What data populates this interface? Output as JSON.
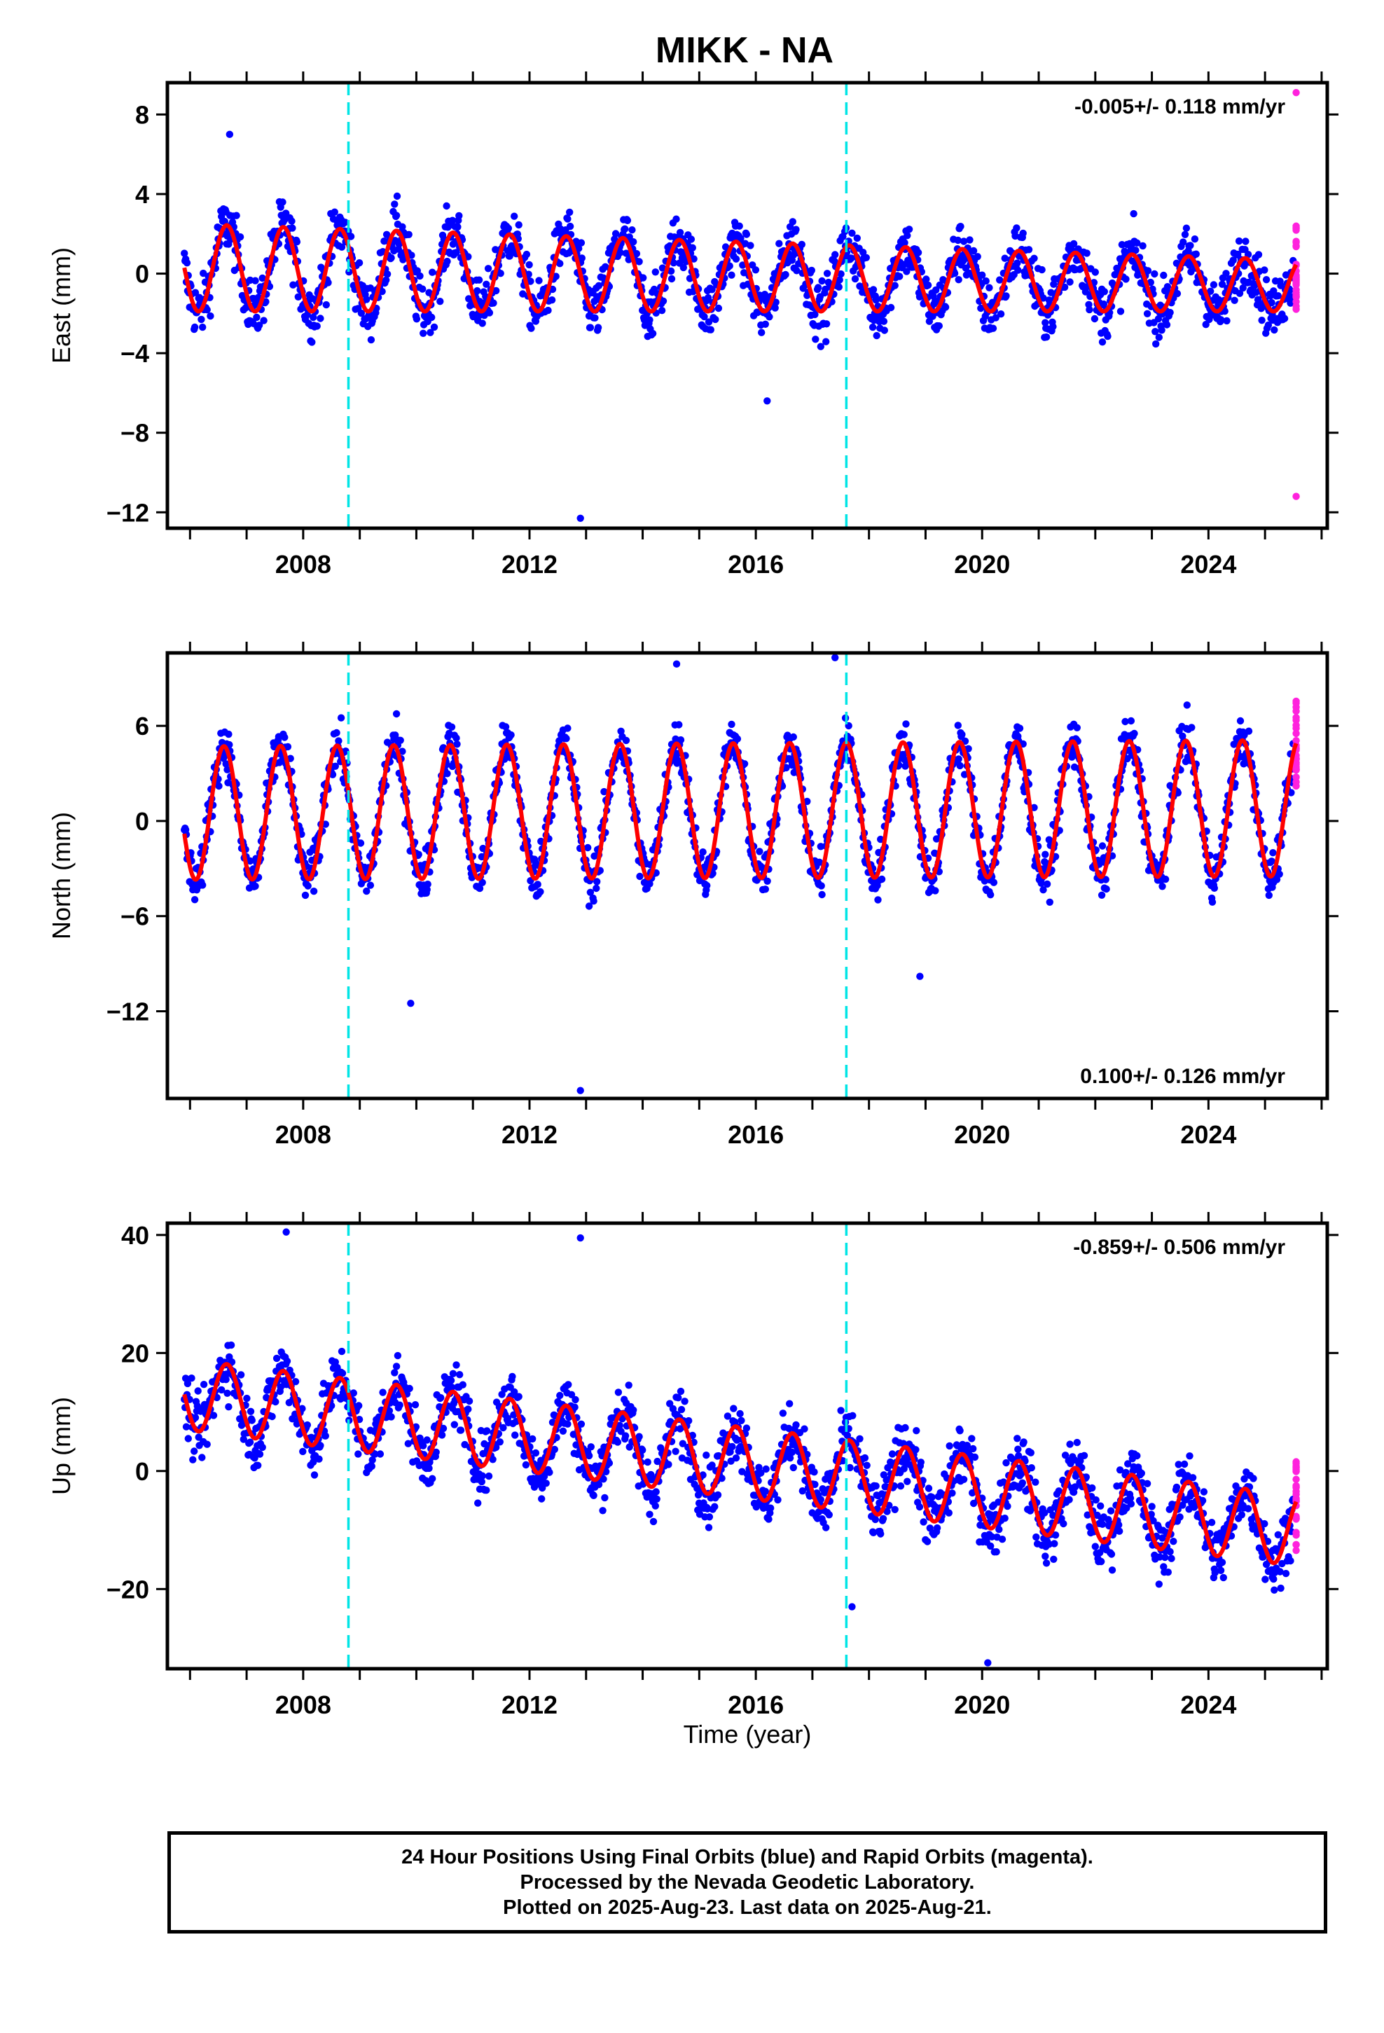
{
  "title": "MIKK - NA",
  "xlabel": "Time (year)",
  "x_ticks": [
    "2008",
    "2012",
    "2016",
    "2020",
    "2024"
  ],
  "colors": {
    "final": "#0000ff",
    "rapid": "#ff22dd",
    "model": "#ff0000",
    "offset": "#00e5e5"
  },
  "footer": [
    "24 Hour Positions Using Final Orbits (blue) and Rapid Orbits (magenta).",
    "Processed by the Nevada Geodetic Laboratory.",
    "Plotted on 2025-Aug-23. Last data on 2025-Aug-21."
  ],
  "chart_data": [
    {
      "type": "scatter",
      "name": "east",
      "ylabel": "East (mm)",
      "rate_text": "-0.005+/- 0.118 mm/yr",
      "rate_position": "top-right",
      "xlim": [
        2005.6,
        2026.1
      ],
      "ylim": [
        -12.8,
        9.6
      ],
      "y_ticks": [
        8,
        4,
        0,
        -4,
        -8,
        -12
      ],
      "y_ticks_labels": [
        "8",
        "4",
        "0",
        "−4",
        "−8",
        "−12"
      ],
      "offsets": [
        2008.8,
        2017.6
      ],
      "data_start": 2005.9,
      "data_end": 2025.5,
      "rapid_start": 2025.55,
      "model": {
        "trend_start": 0.3,
        "trend_end": -0.6,
        "amp_early": 2.2,
        "amp_late": 1.3,
        "phase_peak": 0.65,
        "noise": 1.2
      },
      "outliers": [
        [
          2012.9,
          -12.3
        ],
        [
          2016.2,
          -6.4
        ],
        [
          2025.6,
          -11.2
        ],
        [
          2025.6,
          9.1
        ],
        [
          2006.7,
          7.0
        ]
      ]
    },
    {
      "type": "scatter",
      "name": "north",
      "ylabel": "North (mm)",
      "rate_text": "0.100+/- 0.126 mm/yr",
      "rate_position": "bottom-right",
      "xlim": [
        2005.6,
        2026.1
      ],
      "ylim": [
        -17.5,
        10.6
      ],
      "y_ticks": [
        6,
        0,
        -6,
        -12
      ],
      "y_ticks_labels": [
        "6",
        "0",
        "−6",
        "−12"
      ],
      "offsets": [
        2008.8,
        2017.6
      ],
      "data_start": 2005.9,
      "data_end": 2025.5,
      "rapid_start": 2025.55,
      "model": {
        "trend_start": 0.5,
        "trend_end": 0.8,
        "amp_early": 4.2,
        "amp_late": 4.3,
        "phase_peak": 0.6,
        "noise": 1.3
      },
      "outliers": [
        [
          2012.9,
          -17.0
        ],
        [
          2009.9,
          -11.5
        ],
        [
          2018.9,
          -9.8
        ],
        [
          2017.4,
          10.3
        ],
        [
          2014.6,
          9.9
        ]
      ]
    },
    {
      "type": "scatter",
      "name": "up",
      "ylabel": "Up (mm)",
      "rate_text": "-0.859+/- 0.506 mm/yr",
      "rate_position": "top-right",
      "xlim": [
        2005.6,
        2026.1
      ],
      "ylim": [
        -33.5,
        42.0
      ],
      "y_ticks": [
        40,
        20,
        0,
        -20
      ],
      "y_ticks_labels": [
        "40",
        "20",
        "0",
        "−20"
      ],
      "offsets": [
        2008.8,
        2017.6
      ],
      "data_start": 2005.9,
      "data_end": 2025.5,
      "rapid_start": 2025.55,
      "model": {
        "trend_start": 13.0,
        "trend_end": -10.0,
        "amp_early": 6.0,
        "amp_late": 6.0,
        "phase_peak": 0.65,
        "noise": 4.5
      },
      "outliers": [
        [
          2007.7,
          40.5
        ],
        [
          2012.9,
          39.5
        ],
        [
          2020.1,
          -32.5
        ],
        [
          2017.7,
          -23.0
        ]
      ]
    }
  ]
}
